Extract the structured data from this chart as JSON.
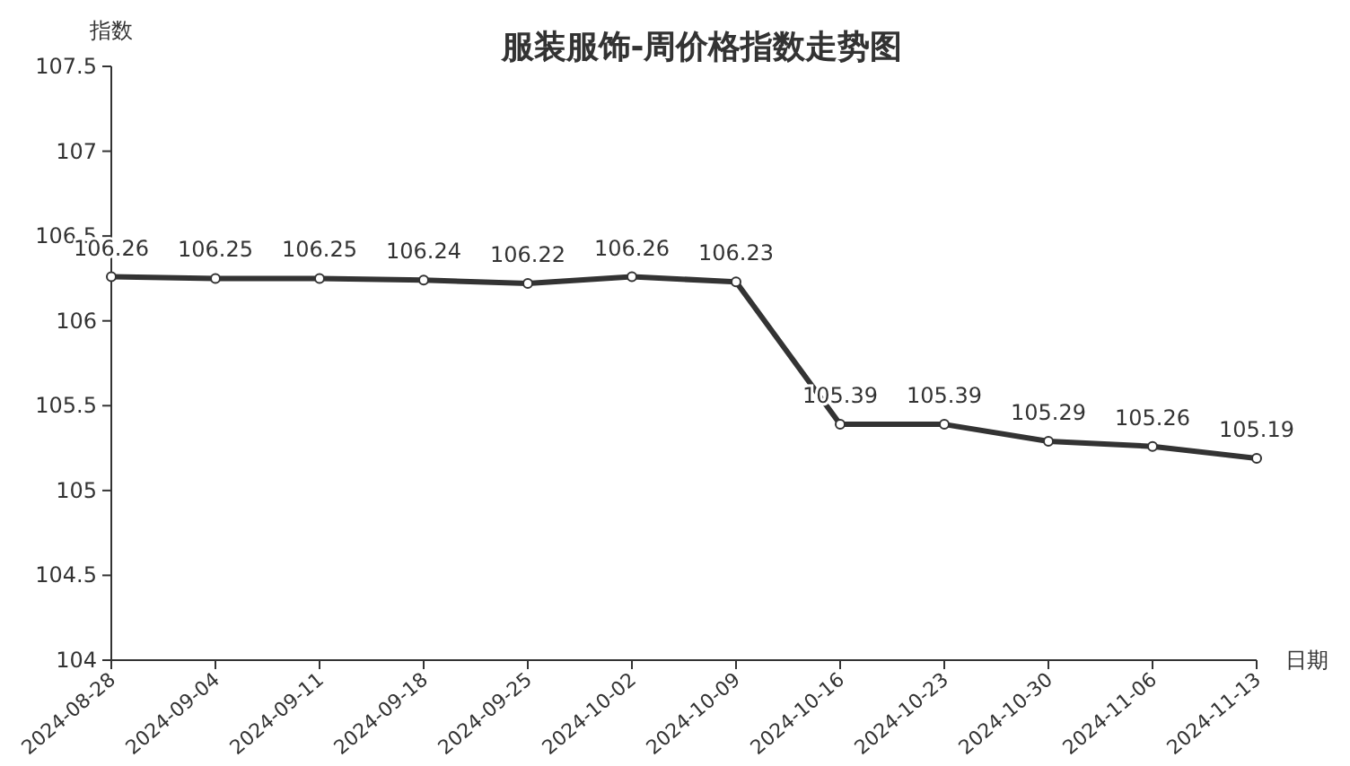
{
  "chart_data": {
    "type": "line",
    "title": "服装服饰-周价格指数走势图",
    "xlabel": "日期",
    "ylabel": "指数",
    "categories": [
      "2024-08-28",
      "2024-09-04",
      "2024-09-11",
      "2024-09-18",
      "2024-09-25",
      "2024-10-02",
      "2024-10-09",
      "2024-10-16",
      "2024-10-23",
      "2024-10-30",
      "2024-11-06",
      "2024-11-13"
    ],
    "series": [
      {
        "color": "#333333",
        "values": [
          106.26,
          106.25,
          106.25,
          106.24,
          106.22,
          106.26,
          106.23,
          105.39,
          105.39,
          105.29,
          105.26,
          105.19
        ]
      }
    ],
    "ylim": [
      104,
      107.5
    ],
    "yticks": [
      104,
      104.5,
      105,
      105.5,
      106,
      106.5,
      107,
      107.5
    ],
    "data_labels": true,
    "marker": "circle",
    "line_style": "solid",
    "grid": false
  }
}
